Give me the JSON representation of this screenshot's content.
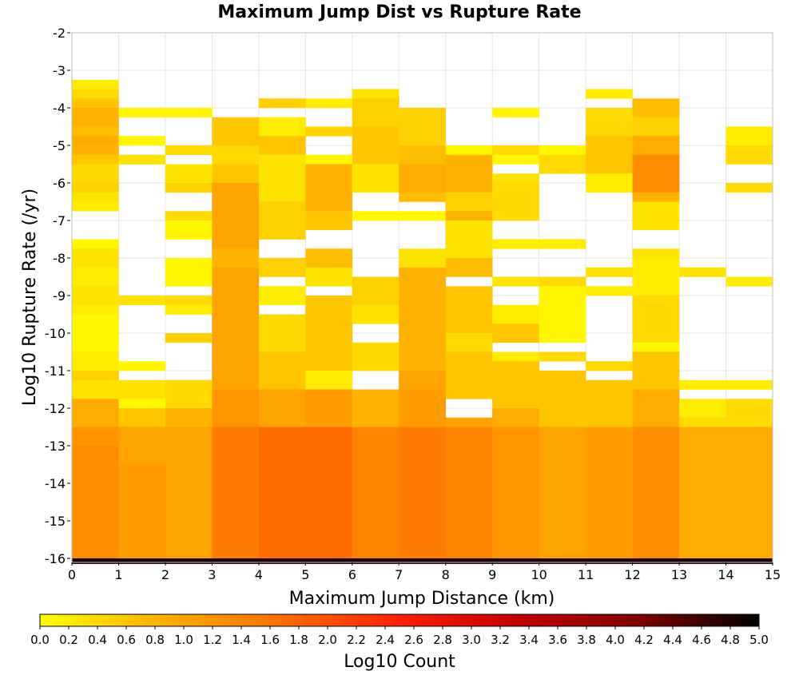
{
  "chart_data": {
    "type": "heatmap",
    "title": "Maximum Jump Dist vs Rupture Rate",
    "xlabel": "Maximum Jump Distance (km)",
    "ylabel": "Log10 Rupture Rate (/yr)",
    "xlim": [
      0,
      15
    ],
    "ylim": [
      -16,
      -2
    ],
    "x_ticks": [
      "0",
      "1",
      "2",
      "3",
      "4",
      "5",
      "6",
      "7",
      "8",
      "9",
      "10",
      "11",
      "12",
      "13",
      "14",
      "15"
    ],
    "y_ticks": [
      "-2",
      "-3",
      "-4",
      "-5",
      "-6",
      "-7",
      "-8",
      "-9",
      "-10",
      "-11",
      "-12",
      "-13",
      "-14",
      "-15",
      "-16"
    ],
    "grid": true,
    "bin_width_x": 1,
    "bin_height_y": 0.25,
    "colorbar": {
      "label": "Log10 Count",
      "range": [
        0,
        5
      ],
      "ticks": [
        "0.0",
        "0.2",
        "0.4",
        "0.6",
        "0.8",
        "1.0",
        "1.2",
        "1.4",
        "1.6",
        "1.8",
        "2.0",
        "2.2",
        "2.4",
        "2.6",
        "2.8",
        "3.0",
        "3.2",
        "3.4",
        "3.6",
        "3.8",
        "4.0",
        "4.2",
        "4.4",
        "4.6",
        "4.8",
        "5.0"
      ],
      "colors": [
        "#ffff00",
        "#ffb000",
        "#ff7000",
        "#ff2000",
        "#c00000",
        "#800000",
        "#000000"
      ]
    },
    "columns": [
      {
        "x": 0,
        "cells": [
          {
            "y0": -3.25,
            "y1": -3.5,
            "value": 0.2
          },
          {
            "y0": -3.5,
            "y1": -3.75,
            "value": 0.4
          },
          {
            "y0": -3.75,
            "y1": -4.0,
            "value": 0.6
          },
          {
            "y0": -4.0,
            "y1": -4.5,
            "value": 0.8
          },
          {
            "y0": -4.5,
            "y1": -4.75,
            "value": 0.7
          },
          {
            "y0": -4.75,
            "y1": -5.0,
            "value": 0.9
          },
          {
            "y0": -5.0,
            "y1": -5.25,
            "value": 0.8
          },
          {
            "y0": -5.25,
            "y1": -5.5,
            "value": 0.6
          },
          {
            "y0": -5.5,
            "y1": -6.0,
            "value": 0.4
          },
          {
            "y0": -6.0,
            "y1": -6.25,
            "value": 0.5
          },
          {
            "y0": -6.25,
            "y1": -6.5,
            "value": 0.3
          },
          {
            "y0": -6.5,
            "y1": -6.75,
            "value": 0.2
          },
          {
            "y0": -7.5,
            "y1": -7.75,
            "value": 0.1
          },
          {
            "y0": -7.75,
            "y1": -8.25,
            "value": 0.3
          },
          {
            "y0": -8.25,
            "y1": -8.75,
            "value": 0.2
          },
          {
            "y0": -8.75,
            "y1": -9.25,
            "value": 0.3
          },
          {
            "y0": -9.25,
            "y1": -9.5,
            "value": 0.2
          },
          {
            "y0": -9.5,
            "y1": -10.5,
            "value": 0.1
          },
          {
            "y0": -10.5,
            "y1": -11.0,
            "value": 0.2
          },
          {
            "y0": -11.0,
            "y1": -11.25,
            "value": 0.5
          },
          {
            "y0": -11.25,
            "y1": -11.75,
            "value": 0.3
          },
          {
            "y0": -11.75,
            "y1": -12.5,
            "value": 0.9
          },
          {
            "y0": -12.5,
            "y1": -13.0,
            "value": 1.2
          },
          {
            "y0": -13.0,
            "y1": -16.0,
            "value": 1.3
          }
        ]
      },
      {
        "x": 1,
        "cells": [
          {
            "y0": -4.0,
            "y1": -4.25,
            "value": 0.1
          },
          {
            "y0": -4.75,
            "y1": -5.0,
            "value": 0.1
          },
          {
            "y0": -5.25,
            "y1": -5.5,
            "value": 0.3
          },
          {
            "y0": -9.0,
            "y1": -9.25,
            "value": 0.3
          },
          {
            "y0": -10.75,
            "y1": -11.0,
            "value": 0.1
          },
          {
            "y0": -11.25,
            "y1": -11.75,
            "value": 0.3
          },
          {
            "y0": -11.75,
            "y1": -12.0,
            "value": 0.1
          },
          {
            "y0": -12.0,
            "y1": -12.5,
            "value": 0.6
          },
          {
            "y0": -12.5,
            "y1": -13.5,
            "value": 1.0
          },
          {
            "y0": -13.5,
            "y1": -16.0,
            "value": 1.1
          }
        ]
      },
      {
        "x": 2,
        "cells": [
          {
            "y0": -4.0,
            "y1": -4.25,
            "value": 0.1
          },
          {
            "y0": -5.0,
            "y1": -5.25,
            "value": 0.4
          },
          {
            "y0": -5.5,
            "y1": -6.0,
            "value": 0.3
          },
          {
            "y0": -6.0,
            "y1": -6.25,
            "value": 0.5
          },
          {
            "y0": -6.75,
            "y1": -7.0,
            "value": 0.4
          },
          {
            "y0": -7.0,
            "y1": -7.5,
            "value": 0.1
          },
          {
            "y0": -8.0,
            "y1": -8.75,
            "value": 0.1
          },
          {
            "y0": -9.0,
            "y1": -9.25,
            "value": 0.4
          },
          {
            "y0": -9.25,
            "y1": -9.5,
            "value": 0.2
          },
          {
            "y0": -10.0,
            "y1": -10.25,
            "value": 0.5
          },
          {
            "y0": -11.25,
            "y1": -12.0,
            "value": 0.4
          },
          {
            "y0": -12.0,
            "y1": -12.5,
            "value": 0.8
          },
          {
            "y0": -12.5,
            "y1": -16.0,
            "value": 1.0
          }
        ]
      },
      {
        "x": 3,
        "cells": [
          {
            "y0": -4.25,
            "y1": -5.0,
            "value": 0.6
          },
          {
            "y0": -5.0,
            "y1": -5.5,
            "value": 0.4
          },
          {
            "y0": -5.5,
            "y1": -6.0,
            "value": 0.6
          },
          {
            "y0": -6.0,
            "y1": -7.75,
            "value": 1.0
          },
          {
            "y0": -7.75,
            "y1": -8.25,
            "value": 0.8
          },
          {
            "y0": -8.25,
            "y1": -11.5,
            "value": 1.0
          },
          {
            "y0": -11.5,
            "y1": -12.5,
            "value": 1.2
          },
          {
            "y0": -12.5,
            "y1": -16.0,
            "value": 1.5
          }
        ]
      },
      {
        "x": 4,
        "cells": [
          {
            "y0": -3.75,
            "y1": -4.0,
            "value": 0.5
          },
          {
            "y0": -4.25,
            "y1": -4.75,
            "value": 0.2
          },
          {
            "y0": -4.75,
            "y1": -5.25,
            "value": 0.6
          },
          {
            "y0": -5.25,
            "y1": -6.5,
            "value": 0.3
          },
          {
            "y0": -6.5,
            "y1": -7.5,
            "value": 0.5
          },
          {
            "y0": -8.0,
            "y1": -8.5,
            "value": 0.5
          },
          {
            "y0": -8.75,
            "y1": -9.25,
            "value": 0.2
          },
          {
            "y0": -9.5,
            "y1": -10.5,
            "value": 0.4
          },
          {
            "y0": -10.5,
            "y1": -11.5,
            "value": 0.6
          },
          {
            "y0": -11.5,
            "y1": -12.5,
            "value": 1.0
          },
          {
            "y0": -12.5,
            "y1": -16.0,
            "value": 1.7
          }
        ]
      },
      {
        "x": 5,
        "cells": [
          {
            "y0": -3.75,
            "y1": -4.0,
            "value": 0.2
          },
          {
            "y0": -4.5,
            "y1": -4.75,
            "value": 0.5
          },
          {
            "y0": -5.25,
            "y1": -5.5,
            "value": 0.1
          },
          {
            "y0": -5.5,
            "y1": -6.75,
            "value": 0.8
          },
          {
            "y0": -6.75,
            "y1": -7.25,
            "value": 0.6
          },
          {
            "y0": -7.75,
            "y1": -8.25,
            "value": 0.7
          },
          {
            "y0": -8.25,
            "y1": -8.75,
            "value": 0.3
          },
          {
            "y0": -9.0,
            "y1": -11.0,
            "value": 0.6
          },
          {
            "y0": -11.0,
            "y1": -11.5,
            "value": 0.2
          },
          {
            "y0": -11.5,
            "y1": -12.5,
            "value": 1.1
          },
          {
            "y0": -12.5,
            "y1": -16.0,
            "value": 1.7
          }
        ]
      },
      {
        "x": 6,
        "cells": [
          {
            "y0": -3.5,
            "y1": -3.75,
            "value": 0.3
          },
          {
            "y0": -3.75,
            "y1": -4.5,
            "value": 0.5
          },
          {
            "y0": -4.5,
            "y1": -5.5,
            "value": 0.6
          },
          {
            "y0": -5.5,
            "y1": -6.25,
            "value": 0.3
          },
          {
            "y0": -6.75,
            "y1": -7.0,
            "value": 0.1
          },
          {
            "y0": -8.5,
            "y1": -9.25,
            "value": 0.5
          },
          {
            "y0": -9.25,
            "y1": -9.75,
            "value": 0.3
          },
          {
            "y0": -10.25,
            "y1": -11.0,
            "value": 0.4
          },
          {
            "y0": -11.5,
            "y1": -12.5,
            "value": 0.8
          },
          {
            "y0": -12.5,
            "y1": -16.0,
            "value": 1.4
          }
        ]
      },
      {
        "x": 7,
        "cells": [
          {
            "y0": -4.0,
            "y1": -5.0,
            "value": 0.5
          },
          {
            "y0": -5.0,
            "y1": -5.5,
            "value": 0.7
          },
          {
            "y0": -5.5,
            "y1": -6.25,
            "value": 0.9
          },
          {
            "y0": -6.25,
            "y1": -6.5,
            "value": 0.7
          },
          {
            "y0": -6.75,
            "y1": -7.0,
            "value": 0.1
          },
          {
            "y0": -7.75,
            "y1": -8.25,
            "value": 0.3
          },
          {
            "y0": -8.25,
            "y1": -11.0,
            "value": 0.8
          },
          {
            "y0": -11.0,
            "y1": -11.5,
            "value": 1.0
          },
          {
            "y0": -11.5,
            "y1": -12.5,
            "value": 1.1
          },
          {
            "y0": -12.5,
            "y1": -16.0,
            "value": 1.5
          }
        ]
      },
      {
        "x": 8,
        "cells": [
          {
            "y0": -5.0,
            "y1": -5.25,
            "value": 0.1
          },
          {
            "y0": -5.25,
            "y1": -6.25,
            "value": 0.8
          },
          {
            "y0": -6.25,
            "y1": -6.75,
            "value": 0.5
          },
          {
            "y0": -6.75,
            "y1": -7.0,
            "value": 0.8
          },
          {
            "y0": -7.0,
            "y1": -8.0,
            "value": 0.3
          },
          {
            "y0": -8.0,
            "y1": -8.5,
            "value": 0.7
          },
          {
            "y0": -8.75,
            "y1": -10.0,
            "value": 0.6
          },
          {
            "y0": -10.0,
            "y1": -10.5,
            "value": 0.4
          },
          {
            "y0": -10.5,
            "y1": -11.75,
            "value": 0.6
          },
          {
            "y0": -12.25,
            "y1": -12.5,
            "value": 1.0
          },
          {
            "y0": -12.5,
            "y1": -16.0,
            "value": 1.4
          }
        ]
      },
      {
        "x": 9,
        "cells": [
          {
            "y0": -4.0,
            "y1": -4.25,
            "value": 0.1
          },
          {
            "y0": -5.0,
            "y1": -5.25,
            "value": 0.4
          },
          {
            "y0": -5.25,
            "y1": -5.5,
            "value": 0.1
          },
          {
            "y0": -5.75,
            "y1": -6.0,
            "value": 0.3
          },
          {
            "y0": -6.0,
            "y1": -7.0,
            "value": 0.4
          },
          {
            "y0": -7.5,
            "y1": -7.75,
            "value": 0.2
          },
          {
            "y0": -8.5,
            "y1": -8.75,
            "value": 0.3
          },
          {
            "y0": -9.25,
            "y1": -9.75,
            "value": 0.2
          },
          {
            "y0": -9.75,
            "y1": -10.25,
            "value": 0.6
          },
          {
            "y0": -10.5,
            "y1": -10.75,
            "value": 0.2
          },
          {
            "y0": -10.75,
            "y1": -12.0,
            "value": 0.6
          },
          {
            "y0": -12.0,
            "y1": -12.5,
            "value": 0.9
          },
          {
            "y0": -12.5,
            "y1": -16.0,
            "value": 1.2
          }
        ]
      },
      {
        "x": 10,
        "cells": [
          {
            "y0": -5.0,
            "y1": -5.25,
            "value": 0.1
          },
          {
            "y0": -5.25,
            "y1": -5.75,
            "value": 0.4
          },
          {
            "y0": -7.5,
            "y1": -7.75,
            "value": 0.2
          },
          {
            "y0": -8.5,
            "y1": -8.75,
            "value": 0.4
          },
          {
            "y0": -8.75,
            "y1": -10.25,
            "value": 0.1
          },
          {
            "y0": -10.5,
            "y1": -10.75,
            "value": 0.4
          },
          {
            "y0": -11.0,
            "y1": -12.5,
            "value": 0.6
          },
          {
            "y0": -12.5,
            "y1": -16.0,
            "value": 1.0
          }
        ]
      },
      {
        "x": 11,
        "cells": [
          {
            "y0": -3.5,
            "y1": -3.75,
            "value": 0.2
          },
          {
            "y0": -4.0,
            "y1": -4.75,
            "value": 0.4
          },
          {
            "y0": -4.75,
            "y1": -5.75,
            "value": 0.6
          },
          {
            "y0": -5.75,
            "y1": -6.25,
            "value": 0.2
          },
          {
            "y0": -8.25,
            "y1": -8.5,
            "value": 0.3
          },
          {
            "y0": -8.75,
            "y1": -9.0,
            "value": 0.2
          },
          {
            "y0": -10.75,
            "y1": -11.0,
            "value": 0.4
          },
          {
            "y0": -11.25,
            "y1": -12.5,
            "value": 0.6
          },
          {
            "y0": -12.5,
            "y1": -16.0,
            "value": 1.1
          }
        ]
      },
      {
        "x": 12,
        "cells": [
          {
            "y0": -3.75,
            "y1": -4.25,
            "value": 0.7
          },
          {
            "y0": -4.25,
            "y1": -4.75,
            "value": 0.5
          },
          {
            "y0": -4.75,
            "y1": -5.25,
            "value": 0.9
          },
          {
            "y0": -5.25,
            "y1": -6.25,
            "value": 1.3
          },
          {
            "y0": -6.25,
            "y1": -6.5,
            "value": 0.8
          },
          {
            "y0": -6.5,
            "y1": -7.25,
            "value": 0.3
          },
          {
            "y0": -7.75,
            "y1": -8.0,
            "value": 0.3
          },
          {
            "y0": -8.0,
            "y1": -9.0,
            "value": 0.2
          },
          {
            "y0": -9.0,
            "y1": -10.25,
            "value": 0.4
          },
          {
            "y0": -10.25,
            "y1": -10.5,
            "value": 0.1
          },
          {
            "y0": -10.5,
            "y1": -11.5,
            "value": 0.6
          },
          {
            "y0": -11.5,
            "y1": -12.5,
            "value": 0.9
          },
          {
            "y0": -12.5,
            "y1": -16.0,
            "value": 1.3
          }
        ]
      },
      {
        "x": 13,
        "cells": [
          {
            "y0": -8.25,
            "y1": -8.5,
            "value": 0.3
          },
          {
            "y0": -11.25,
            "y1": -11.5,
            "value": 0.2
          },
          {
            "y0": -11.75,
            "y1": -12.25,
            "value": 0.2
          },
          {
            "y0": -12.25,
            "y1": -12.5,
            "value": 0.4
          },
          {
            "y0": -12.5,
            "y1": -16.0,
            "value": 0.9
          }
        ]
      },
      {
        "x": 14,
        "cells": [
          {
            "y0": -4.5,
            "y1": -5.0,
            "value": 0.2
          },
          {
            "y0": -5.0,
            "y1": -5.5,
            "value": 0.4
          },
          {
            "y0": -6.0,
            "y1": -6.25,
            "value": 0.4
          },
          {
            "y0": -8.5,
            "y1": -8.75,
            "value": 0.2
          },
          {
            "y0": -11.25,
            "y1": -11.5,
            "value": 0.2
          },
          {
            "y0": -11.75,
            "y1": -12.5,
            "value": 0.4
          },
          {
            "y0": -12.5,
            "y1": -16.0,
            "value": 0.9
          }
        ]
      }
    ],
    "bottom_row": {
      "y0": -16.0,
      "y1": -16.15,
      "value": 4.8
    }
  }
}
